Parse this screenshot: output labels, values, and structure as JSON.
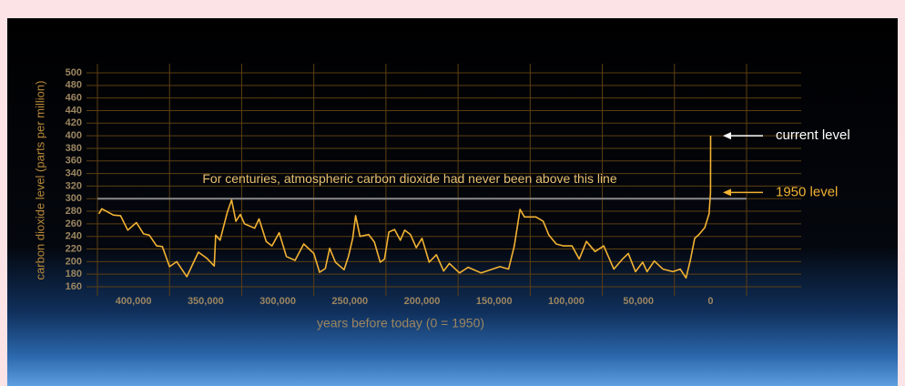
{
  "chart_data": {
    "type": "line",
    "ylabel": "carbon dioxide level (parts per million)",
    "xlabel": "years before today (0 = 1950)",
    "color": "#f2b233",
    "x": [
      424000,
      422000,
      414000,
      409000,
      404000,
      398000,
      393000,
      389000,
      384000,
      380000,
      375000,
      370000,
      363000,
      355000,
      349000,
      344000,
      343000,
      340000,
      335000,
      332000,
      329000,
      326000,
      323000,
      316000,
      313000,
      308000,
      304000,
      299000,
      294000,
      288000,
      282000,
      275000,
      271000,
      267000,
      264000,
      260000,
      254000,
      251000,
      248000,
      246000,
      243000,
      237000,
      233000,
      229000,
      226000,
      223000,
      219000,
      215000,
      212000,
      208000,
      204000,
      200000,
      195000,
      190000,
      185000,
      181000,
      174000,
      168000,
      159000,
      146000,
      140000,
      136000,
      132000,
      129000,
      121000,
      116000,
      112000,
      107000,
      102000,
      96000,
      91000,
      86000,
      80000,
      74000,
      67000,
      61000,
      57000,
      52000,
      47000,
      44000,
      39000,
      33000,
      26000,
      21000,
      17000,
      14000,
      11000,
      8000,
      4000,
      1000,
      0,
      -70
    ],
    "values": [
      276,
      284,
      274,
      273,
      250,
      262,
      244,
      242,
      225,
      224,
      192,
      200,
      176,
      215,
      205,
      193,
      242,
      234,
      278,
      298,
      264,
      275,
      260,
      253,
      268,
      232,
      225,
      246,
      208,
      202,
      228,
      213,
      183,
      189,
      221,
      199,
      187,
      208,
      237,
      273,
      240,
      243,
      231,
      199,
      204,
      247,
      251,
      234,
      250,
      243,
      222,
      237,
      199,
      211,
      185,
      197,
      182,
      191,
      182,
      192,
      188,
      225,
      283,
      271,
      271,
      264,
      242,
      228,
      225,
      225,
      204,
      232,
      216,
      225,
      188,
      204,
      213,
      184,
      199,
      184,
      201,
      188,
      184,
      188,
      174,
      202,
      237,
      243,
      254,
      276,
      310,
      400
    ],
    "xlim": [
      425000,
      -25000
    ],
    "ylim": [
      160,
      500
    ],
    "xticks": [
      {
        "value": 400000,
        "label": "400,000"
      },
      {
        "value": 350000,
        "label": "350,000"
      },
      {
        "value": 300000,
        "label": "300,000"
      },
      {
        "value": 250000,
        "label": "250,000"
      },
      {
        "value": 200000,
        "label": "200,000"
      },
      {
        "value": 150000,
        "label": "150,000"
      },
      {
        "value": 100000,
        "label": "100,000"
      },
      {
        "value": 50000,
        "label": "50,000"
      },
      {
        "value": 0,
        "label": "0"
      }
    ],
    "yticks": [
      160,
      180,
      200,
      220,
      240,
      260,
      280,
      300,
      320,
      340,
      360,
      380,
      400,
      420,
      440,
      460,
      480,
      500
    ],
    "grid": true,
    "annotations": [
      {
        "text": "For centuries, atmospheric carbon dioxide had never been above this line",
        "value": 300
      },
      {
        "text": "current level",
        "value": 400
      },
      {
        "text": "1950 level",
        "value": 310
      }
    ]
  }
}
